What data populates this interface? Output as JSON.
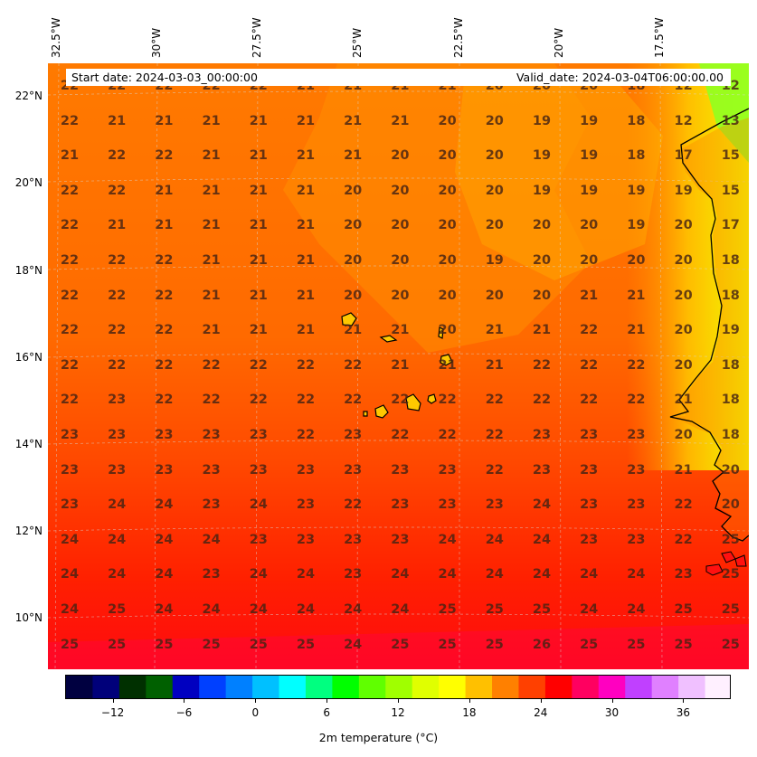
{
  "map": {
    "longitude_labels": [
      "32.5°W",
      "30°W",
      "27.5°W",
      "25°W",
      "22.5°W",
      "20°W",
      "17.5°W"
    ],
    "latitude_labels": [
      "22°N",
      "20°N",
      "18°N",
      "16°N",
      "14°N",
      "12°N",
      "10°N"
    ],
    "start_date": "Start date: 2024-03-03_00:00:00",
    "valid_date": "Valid_date: 2024-03-04T06:00:00.00",
    "extent": {
      "lon_min": -33.1,
      "lon_max": -15.6,
      "lat_min": 8.9,
      "lat_max": 22.7
    },
    "coastline_color": "#000000",
    "grid_line_color": "#cccccc",
    "grid_values": [
      [
        "22",
        "22",
        "22",
        "22",
        "22",
        "21",
        "21",
        "21",
        "21",
        "20",
        "20",
        "20",
        "18",
        "12",
        "12"
      ],
      [
        "22",
        "21",
        "21",
        "21",
        "21",
        "21",
        "21",
        "21",
        "20",
        "20",
        "19",
        "19",
        "18",
        "12",
        "13"
      ],
      [
        "21",
        "22",
        "22",
        "21",
        "21",
        "21",
        "21",
        "20",
        "20",
        "20",
        "19",
        "19",
        "18",
        "17",
        "15"
      ],
      [
        "22",
        "22",
        "21",
        "21",
        "21",
        "21",
        "20",
        "20",
        "20",
        "20",
        "19",
        "19",
        "19",
        "19",
        "15"
      ],
      [
        "22",
        "21",
        "21",
        "21",
        "21",
        "21",
        "20",
        "20",
        "20",
        "20",
        "20",
        "20",
        "19",
        "20",
        "17"
      ],
      [
        "22",
        "22",
        "22",
        "21",
        "21",
        "21",
        "20",
        "20",
        "20",
        "19",
        "20",
        "20",
        "20",
        "20",
        "18"
      ],
      [
        "22",
        "22",
        "22",
        "21",
        "21",
        "21",
        "20",
        "20",
        "20",
        "20",
        "20",
        "21",
        "21",
        "20",
        "18"
      ],
      [
        "22",
        "22",
        "22",
        "21",
        "21",
        "21",
        "21",
        "21",
        "20",
        "21",
        "21",
        "22",
        "21",
        "20",
        "19"
      ],
      [
        "22",
        "22",
        "22",
        "22",
        "22",
        "22",
        "22",
        "21",
        "21",
        "21",
        "22",
        "22",
        "22",
        "20",
        "18"
      ],
      [
        "22",
        "23",
        "22",
        "22",
        "22",
        "22",
        "22",
        "22",
        "22",
        "22",
        "22",
        "22",
        "22",
        "21",
        "18"
      ],
      [
        "23",
        "23",
        "23",
        "23",
        "23",
        "22",
        "23",
        "22",
        "22",
        "22",
        "23",
        "23",
        "23",
        "20",
        "18"
      ],
      [
        "23",
        "23",
        "23",
        "23",
        "23",
        "23",
        "23",
        "23",
        "23",
        "22",
        "23",
        "23",
        "23",
        "21",
        "20"
      ],
      [
        "23",
        "24",
        "24",
        "23",
        "24",
        "23",
        "22",
        "23",
        "23",
        "23",
        "24",
        "23",
        "23",
        "22",
        "20"
      ],
      [
        "24",
        "24",
        "24",
        "24",
        "23",
        "23",
        "23",
        "23",
        "24",
        "24",
        "24",
        "23",
        "23",
        "22",
        "25"
      ],
      [
        "24",
        "24",
        "24",
        "23",
        "24",
        "24",
        "23",
        "24",
        "24",
        "24",
        "24",
        "24",
        "24",
        "23",
        "25"
      ],
      [
        "24",
        "25",
        "24",
        "24",
        "24",
        "24",
        "24",
        "24",
        "25",
        "25",
        "25",
        "24",
        "24",
        "25",
        "25"
      ],
      [
        "25",
        "25",
        "25",
        "25",
        "25",
        "25",
        "24",
        "25",
        "25",
        "25",
        "26",
        "25",
        "25",
        "25",
        "25"
      ]
    ]
  },
  "colorbar": {
    "label": "2m temperature ($^\\circ$C)",
    "label_display": "2m temperature (°C)",
    "ticks": [
      "−12",
      "−6",
      "0",
      "6",
      "12",
      "18",
      "24",
      "30",
      "36"
    ],
    "tick_values": [
      -12,
      -6,
      0,
      6,
      12,
      18,
      24,
      30,
      36
    ],
    "range": [
      -16,
      40
    ],
    "colors": [
      "#000040",
      "#00007a",
      "#003000",
      "#006000",
      "#0000c0",
      "#0040ff",
      "#0080ff",
      "#00c0ff",
      "#00ffff",
      "#00ff80",
      "#00ff00",
      "#60ff00",
      "#a0ff00",
      "#e0ff00",
      "#ffff00",
      "#ffc000",
      "#ff8000",
      "#ff4000",
      "#ff0000",
      "#ff0060",
      "#ff00c0",
      "#c040ff",
      "#e080ff",
      "#f0c0ff",
      "#fff0ff"
    ]
  }
}
